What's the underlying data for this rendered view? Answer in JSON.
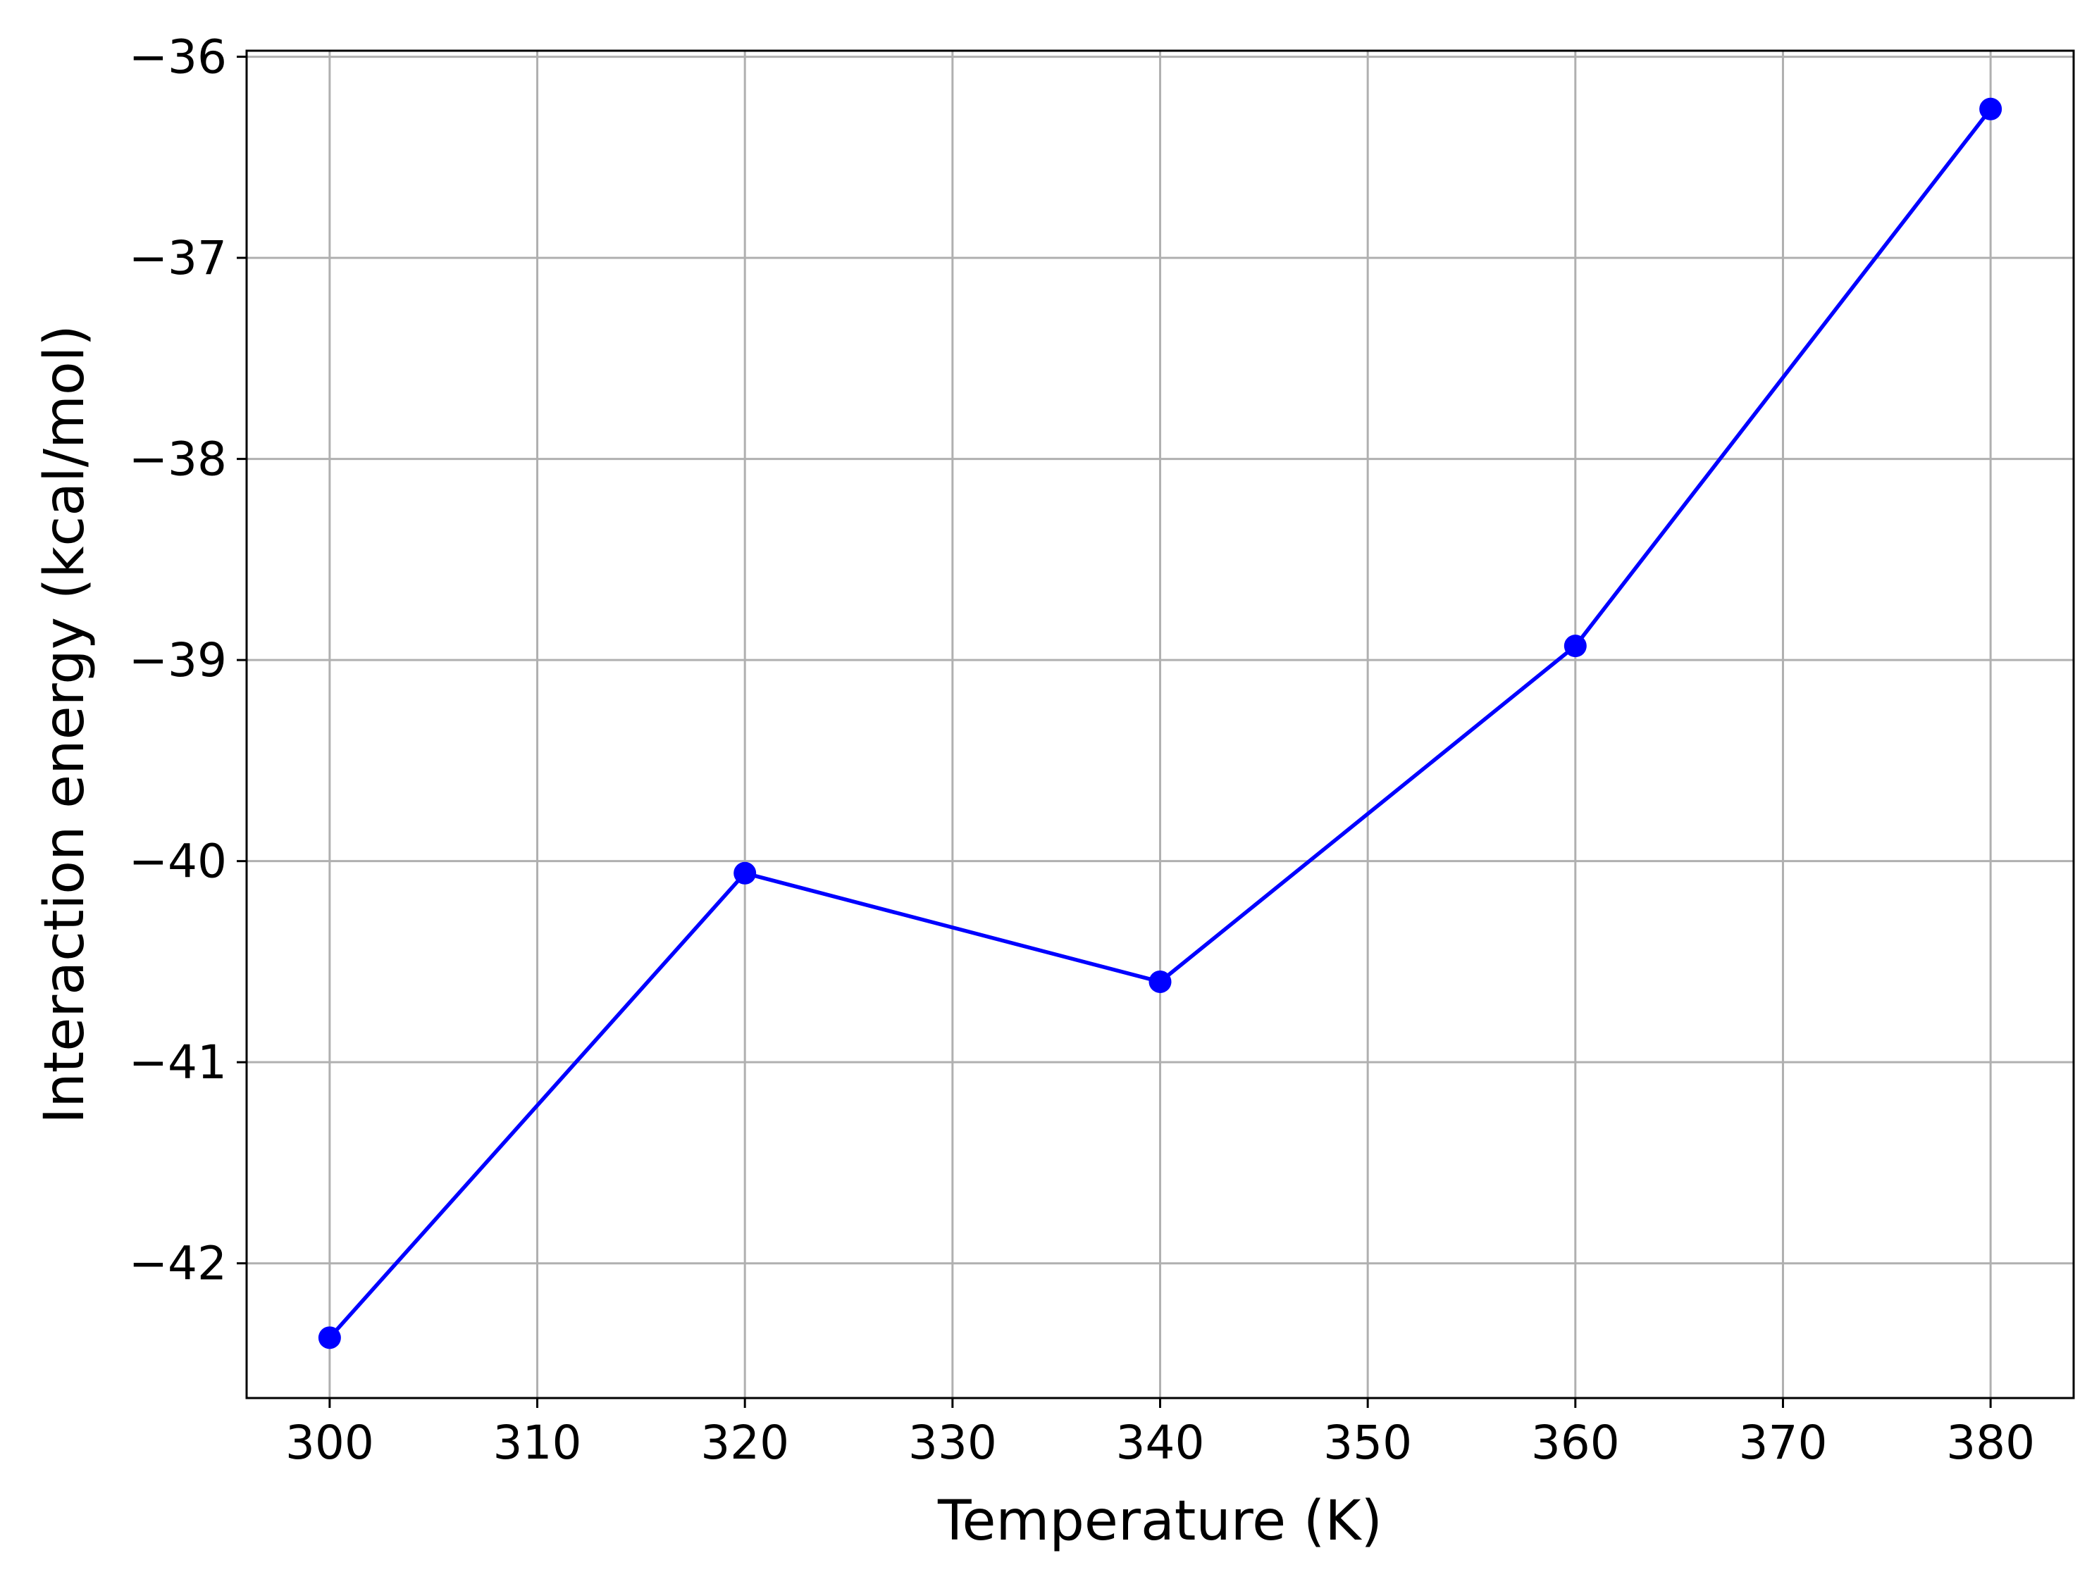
{
  "chart_data": {
    "type": "line",
    "title": "",
    "xlabel": "Temperature (K)",
    "ylabel": "Interaction energy (kcal/mol)",
    "xlim": [
      296,
      384
    ],
    "ylim": [
      -42.67,
      -35.97
    ],
    "xticks": [
      300,
      310,
      320,
      330,
      340,
      350,
      360,
      370,
      380
    ],
    "yticks": [
      -42,
      -41,
      -40,
      -39,
      -38,
      -37,
      -36
    ],
    "xtick_labels": [
      "300",
      "310",
      "320",
      "330",
      "340",
      "350",
      "360",
      "370",
      "380"
    ],
    "ytick_labels": [
      "−42",
      "−41",
      "−40",
      "−39",
      "−38",
      "−37",
      "−36"
    ],
    "grid": true,
    "legend": "none",
    "series": [
      {
        "color": "#0000ff",
        "marker": "circle",
        "x": [
          300,
          320,
          340,
          360,
          380
        ],
        "y": [
          -42.37,
          -40.06,
          -40.6,
          -38.93,
          -36.26
        ]
      }
    ]
  }
}
